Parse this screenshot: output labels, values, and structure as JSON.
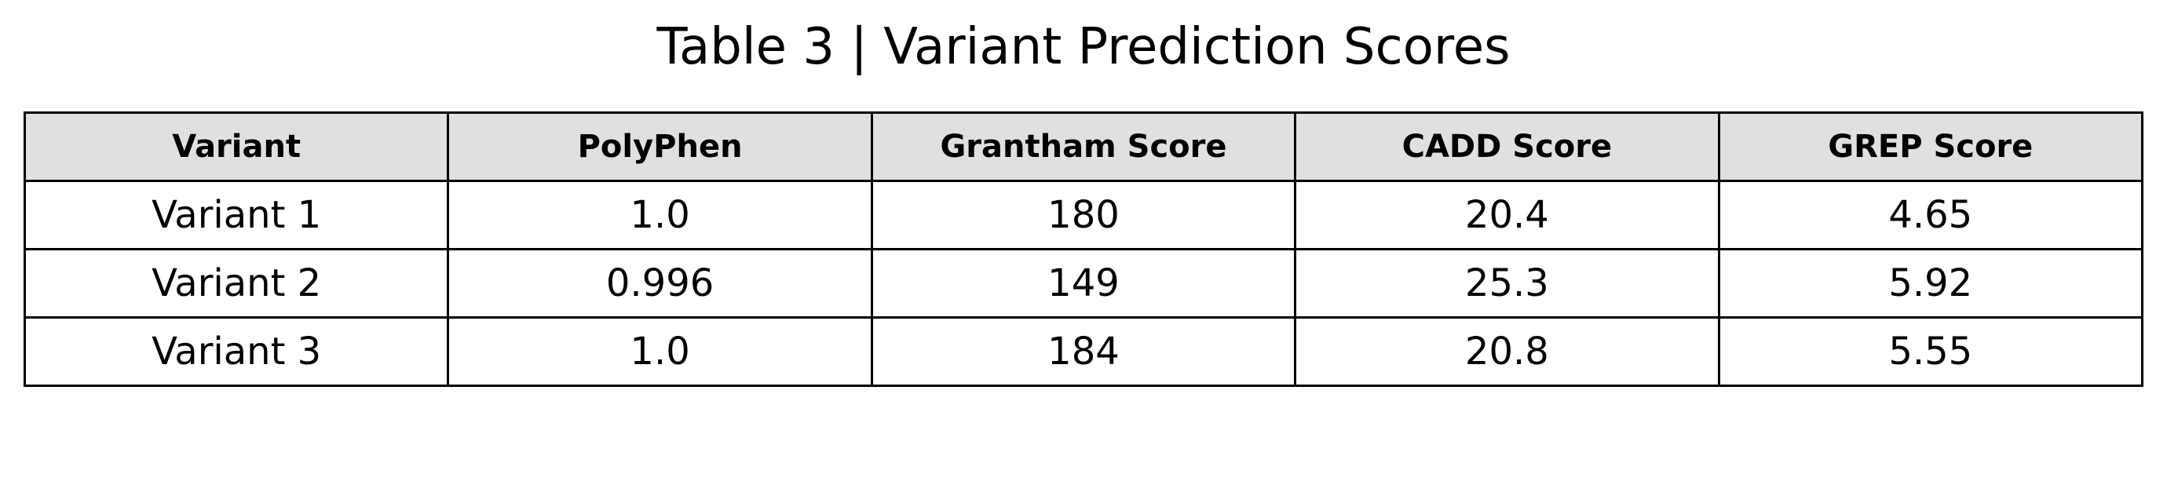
{
  "colors": {
    "header_background": "#e0e0e0",
    "cell_background": "#ffffff",
    "border": "#000000",
    "text": "#000000"
  },
  "chart_data": {
    "type": "table",
    "title": "Table 3 | Variant Prediction Scores",
    "columns": [
      "Variant",
      "PolyPhen",
      "Grantham Score",
      "CADD Score",
      "GREP Score"
    ],
    "rows": [
      [
        "Variant 1",
        "1.0",
        "180",
        "20.4",
        "4.65"
      ],
      [
        "Variant 2",
        "0.996",
        "149",
        "25.3",
        "5.92"
      ],
      [
        "Variant 3",
        "1.0",
        "184",
        "20.8",
        "5.55"
      ]
    ]
  }
}
